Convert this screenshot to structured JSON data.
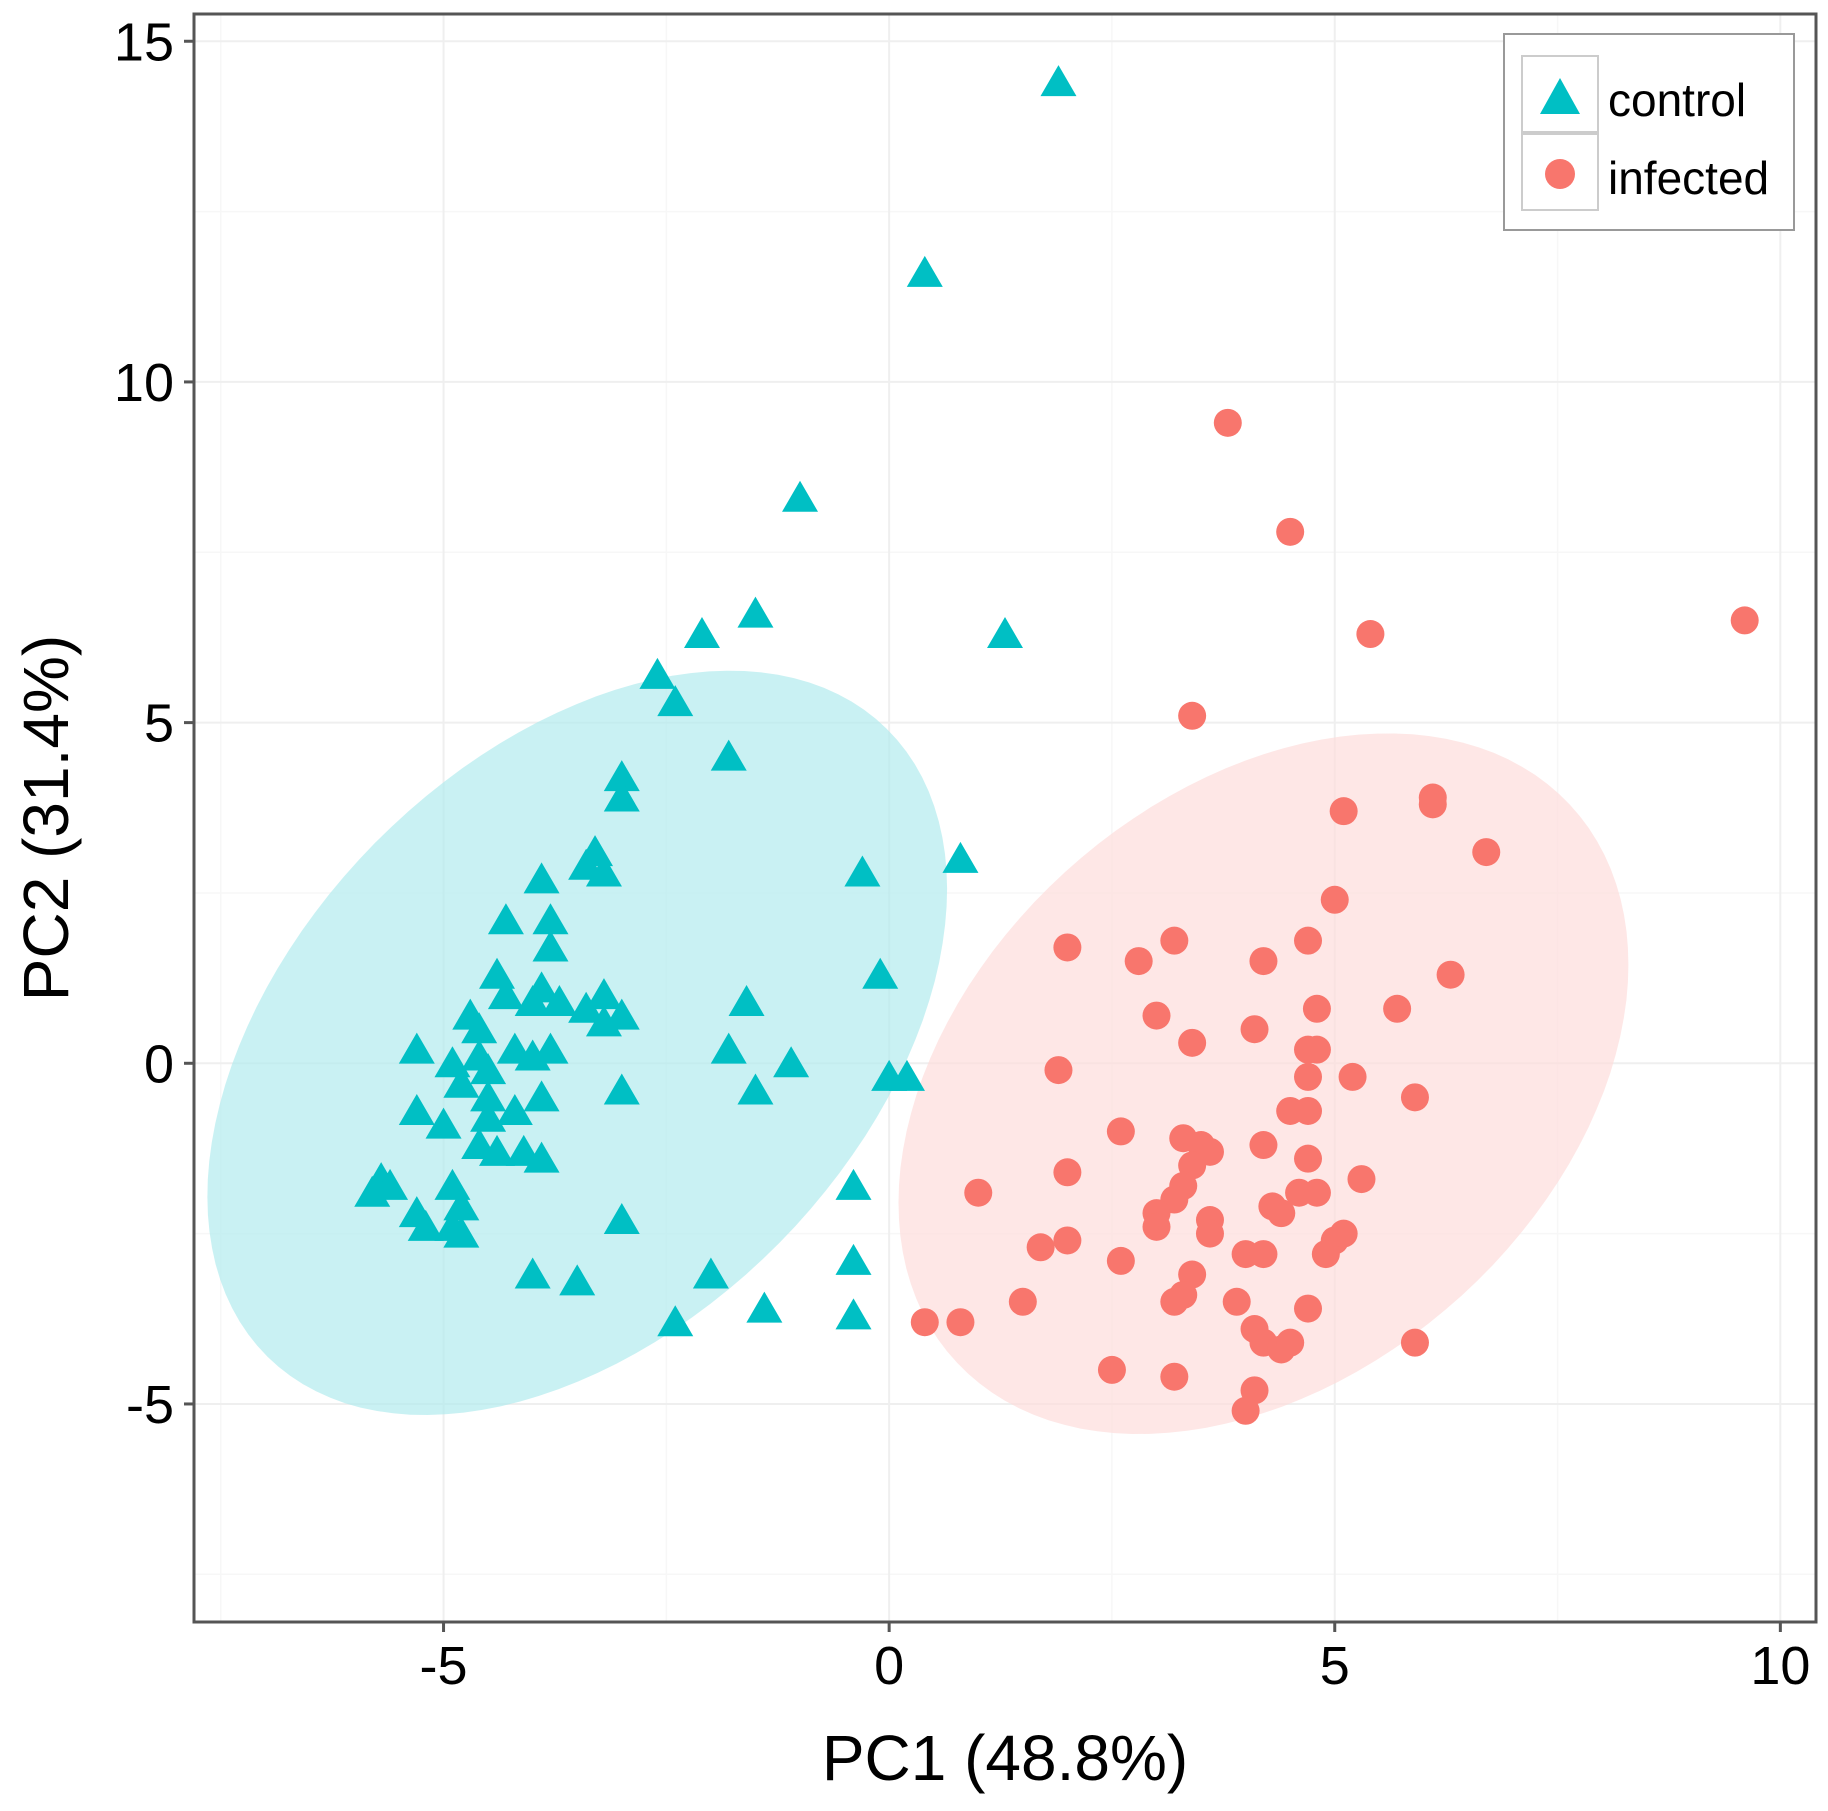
{
  "chart_data": {
    "type": "scatter",
    "title": "",
    "xlabel": "PC1 (48.8%)",
    "ylabel": "PC2 (31.4%)",
    "xlim": [
      -7.8,
      10.4
    ],
    "ylim": [
      -8.2,
      15.4
    ],
    "xticks": [
      -5,
      0,
      5,
      10
    ],
    "yticks": [
      -5,
      0,
      5,
      10,
      15
    ],
    "xtick_labels": [
      "-5",
      "0",
      "5",
      "10"
    ],
    "ytick_labels": [
      "-5",
      "0",
      "5",
      "10",
      "15"
    ],
    "grid": true,
    "legend_position": "top-right",
    "series": [
      {
        "name": "control",
        "marker": "triangle",
        "color": "#00BFC4",
        "ellipse": {
          "center": [
            -3.5,
            0.3
          ],
          "rx": 5.9,
          "ry": 3.5,
          "angle_deg": 62,
          "fill": "#B2EBEE"
        },
        "points": [
          [
            1.9,
            14.4
          ],
          [
            0.4,
            11.6
          ],
          [
            -1.0,
            8.3
          ],
          [
            -2.1,
            6.3
          ],
          [
            -1.5,
            6.6
          ],
          [
            1.3,
            6.3
          ],
          [
            -2.6,
            5.7
          ],
          [
            -2.4,
            5.3
          ],
          [
            -1.8,
            4.5
          ],
          [
            -3.0,
            4.2
          ],
          [
            -3.0,
            3.9
          ],
          [
            -3.4,
            2.9
          ],
          [
            -3.3,
            3.1
          ],
          [
            -3.2,
            2.8
          ],
          [
            -3.9,
            2.7
          ],
          [
            -0.3,
            2.8
          ],
          [
            0.8,
            3.0
          ],
          [
            -4.3,
            2.1
          ],
          [
            -3.8,
            2.1
          ],
          [
            -3.8,
            1.7
          ],
          [
            -4.4,
            1.3
          ],
          [
            -3.9,
            1.1
          ],
          [
            -4.3,
            1.0
          ],
          [
            -4.0,
            0.9
          ],
          [
            -3.7,
            0.9
          ],
          [
            -3.2,
            1.0
          ],
          [
            -3.4,
            0.8
          ],
          [
            -3.2,
            0.6
          ],
          [
            -3.0,
            0.7
          ],
          [
            -1.6,
            0.9
          ],
          [
            -0.1,
            1.3
          ],
          [
            -4.7,
            0.7
          ],
          [
            -4.6,
            0.5
          ],
          [
            -5.3,
            0.2
          ],
          [
            -4.9,
            0.0
          ],
          [
            -4.6,
            0.1
          ],
          [
            -4.5,
            -0.1
          ],
          [
            -4.2,
            0.2
          ],
          [
            -4.0,
            0.1
          ],
          [
            -3.8,
            0.2
          ],
          [
            -1.8,
            0.2
          ],
          [
            -1.1,
            0.0
          ],
          [
            -4.8,
            -0.3
          ],
          [
            -4.5,
            -0.5
          ],
          [
            -3.9,
            -0.5
          ],
          [
            -3.0,
            -0.4
          ],
          [
            -1.5,
            -0.4
          ],
          [
            0.0,
            -0.2
          ],
          [
            0.2,
            -0.2
          ],
          [
            -5.3,
            -0.7
          ],
          [
            -5.0,
            -0.9
          ],
          [
            -4.5,
            -0.8
          ],
          [
            -4.2,
            -0.7
          ],
          [
            -4.6,
            -1.2
          ],
          [
            -4.4,
            -1.3
          ],
          [
            -4.1,
            -1.3
          ],
          [
            -3.9,
            -1.4
          ],
          [
            -5.7,
            -1.7
          ],
          [
            -5.6,
            -1.8
          ],
          [
            -5.8,
            -1.9
          ],
          [
            -4.9,
            -1.8
          ],
          [
            -4.8,
            -2.1
          ],
          [
            -5.3,
            -2.2
          ],
          [
            -5.2,
            -2.4
          ],
          [
            -4.9,
            -2.4
          ],
          [
            -4.8,
            -2.5
          ],
          [
            -3.0,
            -2.3
          ],
          [
            -0.4,
            -1.8
          ],
          [
            -0.4,
            -2.9
          ],
          [
            -4.0,
            -3.1
          ],
          [
            -3.5,
            -3.2
          ],
          [
            -2.0,
            -3.1
          ],
          [
            -2.4,
            -3.8
          ],
          [
            -1.4,
            -3.6
          ],
          [
            -0.4,
            -3.7
          ]
        ]
      },
      {
        "name": "infected",
        "marker": "circle",
        "color": "#F8766D",
        "ellipse": {
          "center": [
            4.2,
            -0.3
          ],
          "rx": 5.5,
          "ry": 3.6,
          "angle_deg": 62,
          "fill": "#FDDDDB"
        },
        "points": [
          [
            3.8,
            9.4
          ],
          [
            4.5,
            7.8
          ],
          [
            5.4,
            6.3
          ],
          [
            9.6,
            6.5
          ],
          [
            3.4,
            5.1
          ],
          [
            5.1,
            3.7
          ],
          [
            6.1,
            3.9
          ],
          [
            6.1,
            3.8
          ],
          [
            6.7,
            3.1
          ],
          [
            5.0,
            2.4
          ],
          [
            2.0,
            1.7
          ],
          [
            2.8,
            1.5
          ],
          [
            3.2,
            1.8
          ],
          [
            4.2,
            1.5
          ],
          [
            4.7,
            1.8
          ],
          [
            6.3,
            1.3
          ],
          [
            3.0,
            0.7
          ],
          [
            4.1,
            0.5
          ],
          [
            4.8,
            0.8
          ],
          [
            5.7,
            0.8
          ],
          [
            3.4,
            0.3
          ],
          [
            4.7,
            0.2
          ],
          [
            4.8,
            0.2
          ],
          [
            1.9,
            -0.1
          ],
          [
            4.7,
            -0.2
          ],
          [
            5.2,
            -0.2
          ],
          [
            5.9,
            -0.5
          ],
          [
            2.6,
            -1.0
          ],
          [
            4.5,
            -0.7
          ],
          [
            4.7,
            -0.7
          ],
          [
            3.3,
            -1.1
          ],
          [
            3.5,
            -1.2
          ],
          [
            3.6,
            -1.3
          ],
          [
            4.2,
            -1.2
          ],
          [
            3.4,
            -1.5
          ],
          [
            4.7,
            -1.4
          ],
          [
            5.3,
            -1.7
          ],
          [
            1.0,
            -1.9
          ],
          [
            2.0,
            -1.6
          ],
          [
            3.3,
            -1.8
          ],
          [
            3.2,
            -2.0
          ],
          [
            3.0,
            -2.2
          ],
          [
            3.0,
            -2.4
          ],
          [
            4.3,
            -2.1
          ],
          [
            4.4,
            -2.2
          ],
          [
            4.6,
            -1.9
          ],
          [
            4.8,
            -1.9
          ],
          [
            3.6,
            -2.3
          ],
          [
            3.6,
            -2.5
          ],
          [
            1.7,
            -2.7
          ],
          [
            2.0,
            -2.6
          ],
          [
            4.0,
            -2.8
          ],
          [
            4.2,
            -2.8
          ],
          [
            5.0,
            -2.6
          ],
          [
            5.1,
            -2.5
          ],
          [
            4.9,
            -2.8
          ],
          [
            2.6,
            -2.9
          ],
          [
            3.4,
            -3.1
          ],
          [
            3.3,
            -3.4
          ],
          [
            3.2,
            -3.5
          ],
          [
            3.9,
            -3.5
          ],
          [
            1.5,
            -3.5
          ],
          [
            0.4,
            -3.8
          ],
          [
            0.8,
            -3.8
          ],
          [
            4.7,
            -3.6
          ],
          [
            4.1,
            -3.9
          ],
          [
            4.2,
            -4.1
          ],
          [
            4.4,
            -4.2
          ],
          [
            4.5,
            -4.1
          ],
          [
            5.9,
            -4.1
          ],
          [
            2.5,
            -4.5
          ],
          [
            3.2,
            -4.6
          ],
          [
            4.1,
            -4.8
          ],
          [
            4.0,
            -5.1
          ]
        ]
      }
    ]
  }
}
